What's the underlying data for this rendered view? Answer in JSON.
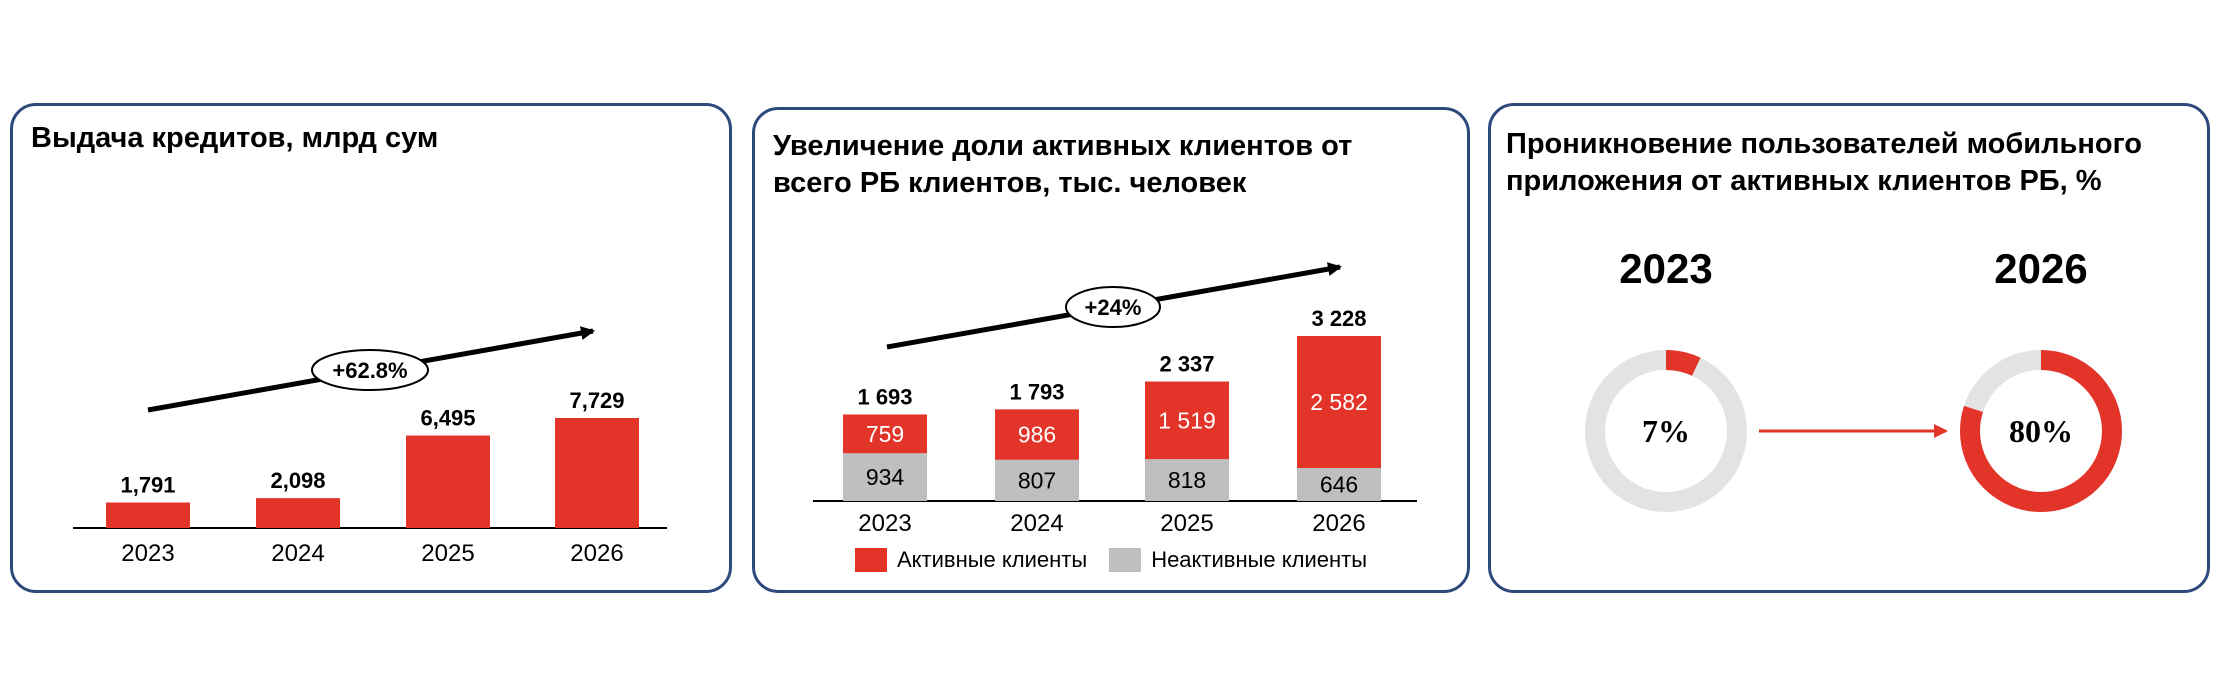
{
  "colors": {
    "accent": "#e3342a",
    "inactive": "#bfbfbf",
    "ring_bg": "#e3e3e3",
    "border": "#2e4a7d"
  },
  "panels": [
    {
      "title": "Выдача кредитов, млрд сум"
    },
    {
      "title": "Увеличение доли активных клиентов от\nвсего РБ клиентов, тыс. человек"
    },
    {
      "title": "Проникновение пользователей мобильного\nприложения от активных клиентов РБ, %"
    }
  ],
  "chart_data": [
    {
      "type": "bar",
      "title": "Выдача кредитов, млрд сум",
      "categories": [
        "2023",
        "2024",
        "2025",
        "2026"
      ],
      "values": [
        1791,
        2098,
        6495,
        7729
      ],
      "value_labels": [
        "1,791",
        "2,098",
        "6,495",
        "7,729"
      ],
      "growth_label": "+62.8%",
      "ylim": [
        0,
        8500
      ],
      "grid": false
    },
    {
      "type": "bar",
      "stacked": true,
      "title": "Увеличение доли активных клиентов от всего РБ клиентов, тыс. человек",
      "categories": [
        "2023",
        "2024",
        "2025",
        "2026"
      ],
      "series": [
        {
          "name": "Неактивные клиенты",
          "values": [
            934,
            807,
            818,
            646
          ],
          "labels": [
            "934",
            "807",
            "818",
            "646"
          ],
          "color": "#bfbfbf"
        },
        {
          "name": "Активные клиенты",
          "values": [
            759,
            986,
            1519,
            2582
          ],
          "labels": [
            "759",
            "986",
            "1 519",
            "2 582"
          ],
          "color": "#e3342a"
        }
      ],
      "totals": [
        1693,
        1793,
        2337,
        3228
      ],
      "total_labels": [
        "1 693",
        "1 793",
        "2 337",
        "3 228"
      ],
      "growth_label": "+24%",
      "legend": {
        "position": "bottom",
        "items": [
          "Активные клиенты",
          "Неактивные клиенты"
        ]
      },
      "grid": false
    },
    {
      "type": "pie",
      "title": "Проникновение пользователей мобильного приложения от активных клиентов РБ, %",
      "rings": [
        {
          "year": "2023",
          "value": 7,
          "label": "7%"
        },
        {
          "year": "2026",
          "value": 80,
          "label": "80%"
        }
      ]
    }
  ]
}
